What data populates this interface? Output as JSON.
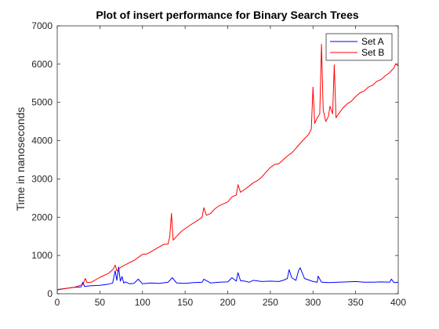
{
  "chart_data": {
    "type": "line",
    "title": "Plot of insert performance for Binary Search Trees",
    "xlabel": "",
    "ylabel": "Time in nanoseconds",
    "xlim": [
      0,
      400
    ],
    "ylim": [
      0,
      7000
    ],
    "xticks": [
      0,
      50,
      100,
      150,
      200,
      250,
      300,
      350,
      400
    ],
    "yticks": [
      0,
      1000,
      2000,
      3000,
      4000,
      5000,
      6000,
      7000
    ],
    "grid": false,
    "legend_position": "top-right",
    "series": [
      {
        "name": "Set A",
        "color": "#0000ff",
        "x": [
          0,
          10,
          20,
          28,
          30,
          32,
          35,
          40,
          50,
          60,
          65,
          68,
          70,
          72,
          74,
          76,
          78,
          80,
          85,
          90,
          95,
          100,
          110,
          120,
          130,
          135,
          140,
          150,
          160,
          170,
          172,
          180,
          190,
          200,
          205,
          210,
          212,
          215,
          220,
          225,
          230,
          240,
          250,
          260,
          265,
          270,
          272,
          275,
          280,
          283,
          285,
          290,
          300,
          305,
          306,
          310,
          320,
          330,
          340,
          350,
          360,
          370,
          380,
          390,
          392,
          395,
          400
        ],
        "y": [
          110,
          140,
          170,
          180,
          300,
          190,
          200,
          210,
          220,
          250,
          280,
          600,
          350,
          700,
          330,
          450,
          280,
          310,
          260,
          270,
          380,
          260,
          280,
          270,
          300,
          420,
          280,
          270,
          290,
          300,
          380,
          280,
          300,
          310,
          420,
          330,
          550,
          340,
          330,
          300,
          350,
          320,
          330,
          320,
          350,
          400,
          630,
          420,
          350,
          600,
          680,
          400,
          320,
          300,
          460,
          300,
          290,
          300,
          310,
          320,
          300,
          300,
          310,
          300,
          380,
          290,
          300
        ]
      },
      {
        "name": "Set B",
        "color": "#ff0000",
        "x": [
          0,
          10,
          20,
          30,
          33,
          35,
          40,
          50,
          60,
          66,
          68,
          70,
          75,
          80,
          90,
          100,
          105,
          110,
          120,
          125,
          130,
          132,
          134,
          136,
          140,
          145,
          150,
          155,
          160,
          165,
          170,
          172,
          175,
          180,
          185,
          190,
          195,
          200,
          205,
          210,
          212,
          215,
          220,
          225,
          230,
          235,
          240,
          245,
          250,
          255,
          260,
          265,
          270,
          275,
          280,
          285,
          290,
          295,
          298,
          300,
          302,
          305,
          308,
          310,
          312,
          315,
          318,
          320,
          323,
          325,
          327,
          330,
          335,
          340,
          345,
          350,
          355,
          360,
          365,
          370,
          375,
          380,
          385,
          390,
          395,
          397,
          400
        ],
        "y": [
          100,
          140,
          170,
          240,
          400,
          290,
          300,
          430,
          530,
          650,
          750,
          600,
          700,
          760,
          870,
          1030,
          1040,
          1100,
          1230,
          1290,
          1300,
          1500,
          2100,
          1400,
          1500,
          1620,
          1700,
          1780,
          1850,
          1920,
          2000,
          2250,
          2050,
          2100,
          2220,
          2300,
          2350,
          2400,
          2530,
          2580,
          2850,
          2650,
          2730,
          2810,
          2900,
          2960,
          3050,
          3180,
          3300,
          3380,
          3400,
          3500,
          3600,
          3680,
          3800,
          3930,
          4050,
          4170,
          4300,
          5400,
          4450,
          4600,
          4700,
          6520,
          4800,
          4500,
          4630,
          4900,
          4700,
          5980,
          4600,
          4700,
          4850,
          4960,
          5030,
          5150,
          5250,
          5300,
          5400,
          5450,
          5550,
          5600,
          5700,
          5780,
          5900,
          6010,
          5950
        ]
      }
    ]
  }
}
